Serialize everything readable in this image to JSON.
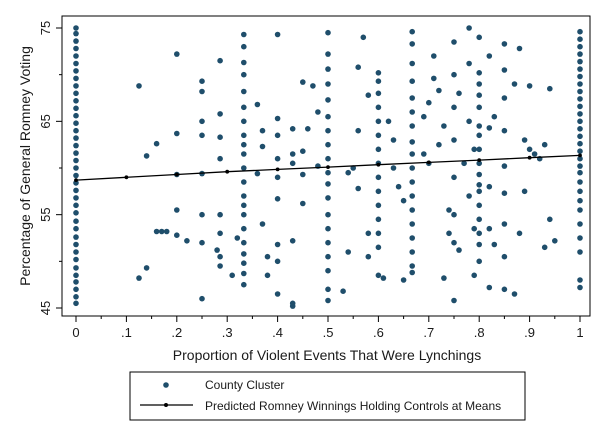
{
  "chart_data": {
    "type": "scatter",
    "xlabel": "Proportion of Violent Events That Were Lynchings",
    "ylabel": "Percentage of General Romney Voting",
    "xlim": [
      0,
      1
    ],
    "ylim": [
      45,
      75
    ],
    "x_ticks": [
      0,
      0.1,
      0.2,
      0.3,
      0.4,
      0.5,
      0.6,
      0.7,
      0.8,
      0.9,
      1
    ],
    "x_tick_labels": [
      "0",
      ".1",
      ".2",
      ".3",
      ".4",
      ".5",
      ".6",
      ".7",
      ".8",
      ".9",
      "1"
    ],
    "y_ticks": [
      45,
      55,
      65,
      75
    ],
    "y_tick_labels": [
      "45",
      "55",
      "65",
      "75"
    ],
    "grid": false,
    "legend_position": "bottom-center",
    "colors": {
      "points": "#1f4e6b",
      "line": "#000000",
      "frame": "#000000"
    },
    "series": [
      {
        "name": "County Cluster",
        "kind": "scatter",
        "points": [
          [
            0,
            45.5
          ],
          [
            0,
            46.2
          ],
          [
            0,
            47.0
          ],
          [
            0,
            47.8
          ],
          [
            0,
            48.5
          ],
          [
            0,
            49.3
          ],
          [
            0,
            50.2
          ],
          [
            0,
            51.0
          ],
          [
            0,
            51.8
          ],
          [
            0,
            52.6
          ],
          [
            0,
            53.5
          ],
          [
            0,
            54.3
          ],
          [
            0,
            55.2
          ],
          [
            0,
            56.0
          ],
          [
            0,
            56.8
          ],
          [
            0,
            57.6
          ],
          [
            0,
            58.4
          ],
          [
            0,
            59.2
          ],
          [
            0,
            60.0
          ],
          [
            0,
            60.8
          ],
          [
            0,
            61.6
          ],
          [
            0,
            62.4
          ],
          [
            0,
            63.2
          ],
          [
            0,
            64.0
          ],
          [
            0,
            64.8
          ],
          [
            0,
            65.6
          ],
          [
            0,
            66.4
          ],
          [
            0,
            67.2
          ],
          [
            0,
            68.0
          ],
          [
            0,
            68.8
          ],
          [
            0,
            69.6
          ],
          [
            0,
            70.4
          ],
          [
            0,
            71.2
          ],
          [
            0,
            72.0
          ],
          [
            0,
            72.8
          ],
          [
            0,
            73.6
          ],
          [
            0,
            74.4
          ],
          [
            0,
            75.0
          ],
          [
            1,
            47.2
          ],
          [
            1,
            48.0
          ],
          [
            1,
            51.0
          ],
          [
            1,
            52.5
          ],
          [
            1,
            54.0
          ],
          [
            1,
            55.5
          ],
          [
            1,
            56.5
          ],
          [
            1,
            57.5
          ],
          [
            1,
            58.5
          ],
          [
            1,
            59.5
          ],
          [
            1,
            60.2
          ],
          [
            1,
            61.0
          ],
          [
            1,
            61.8
          ],
          [
            1,
            62.6
          ],
          [
            1,
            63.4
          ],
          [
            1,
            64.2
          ],
          [
            1,
            65.0
          ],
          [
            1,
            65.8
          ],
          [
            1,
            66.6
          ],
          [
            1,
            67.4
          ],
          [
            1,
            68.2
          ],
          [
            1,
            69.0
          ],
          [
            1,
            69.8
          ],
          [
            1,
            70.6
          ],
          [
            1,
            71.4
          ],
          [
            1,
            72.2
          ],
          [
            1,
            73.0
          ],
          [
            1,
            73.8
          ],
          [
            1,
            74.6
          ],
          [
            0.125,
            68.8
          ],
          [
            0.125,
            48.2
          ],
          [
            0.14,
            61.3
          ],
          [
            0.14,
            49.3
          ],
          [
            0.16,
            62.6
          ],
          [
            0.16,
            53.2
          ],
          [
            0.17,
            53.2
          ],
          [
            0.18,
            53.2
          ],
          [
            0.2,
            72.2
          ],
          [
            0.2,
            63.7
          ],
          [
            0.2,
            59.3
          ],
          [
            0.2,
            55.5
          ],
          [
            0.2,
            52.8
          ],
          [
            0.22,
            52.2
          ],
          [
            0.25,
            69.3
          ],
          [
            0.25,
            68.2
          ],
          [
            0.25,
            65.0
          ],
          [
            0.25,
            63.5
          ],
          [
            0.25,
            59.4
          ],
          [
            0.25,
            55.0
          ],
          [
            0.25,
            52.0
          ],
          [
            0.25,
            46.0
          ],
          [
            0.28,
            51.2
          ],
          [
            0.286,
            71.5
          ],
          [
            0.286,
            65.8
          ],
          [
            0.286,
            63.3
          ],
          [
            0.286,
            61.0
          ],
          [
            0.286,
            55.0
          ],
          [
            0.286,
            53.0
          ],
          [
            0.286,
            50.5
          ],
          [
            0.286,
            49.5
          ],
          [
            0.31,
            48.5
          ],
          [
            0.32,
            52.5
          ],
          [
            0.333,
            74.3
          ],
          [
            0.333,
            73.0
          ],
          [
            0.333,
            71.3
          ],
          [
            0.333,
            70.0
          ],
          [
            0.333,
            68.2
          ],
          [
            0.333,
            66.5
          ],
          [
            0.333,
            65.0
          ],
          [
            0.333,
            63.5
          ],
          [
            0.333,
            62.5
          ],
          [
            0.333,
            61.5
          ],
          [
            0.333,
            60.0
          ],
          [
            0.333,
            58.5
          ],
          [
            0.333,
            57.0
          ],
          [
            0.333,
            56.0
          ],
          [
            0.333,
            55.0
          ],
          [
            0.333,
            53.5
          ],
          [
            0.333,
            52.0
          ],
          [
            0.333,
            50.8
          ],
          [
            0.333,
            49.8
          ],
          [
            0.333,
            48.7
          ],
          [
            0.333,
            47.5
          ],
          [
            0.36,
            66.8
          ],
          [
            0.37,
            64.0
          ],
          [
            0.37,
            62.3
          ],
          [
            0.36,
            59.4
          ],
          [
            0.37,
            54.0
          ],
          [
            0.38,
            50.5
          ],
          [
            0.38,
            48.5
          ],
          [
            0.4,
            74.3
          ],
          [
            0.4,
            65.3
          ],
          [
            0.4,
            63.5
          ],
          [
            0.4,
            61.0
          ],
          [
            0.4,
            59.0
          ],
          [
            0.4,
            56.7
          ],
          [
            0.4,
            51.8
          ],
          [
            0.4,
            50.0
          ],
          [
            0.4,
            46.5
          ],
          [
            0.43,
            64.2
          ],
          [
            0.43,
            61.5
          ],
          [
            0.43,
            60.5
          ],
          [
            0.43,
            52.2
          ],
          [
            0.43,
            45.5
          ],
          [
            0.43,
            45.2
          ],
          [
            0.45,
            69.2
          ],
          [
            0.45,
            61.8
          ],
          [
            0.45,
            59.3
          ],
          [
            0.45,
            56.2
          ],
          [
            0.46,
            64.2
          ],
          [
            0.47,
            68.8
          ],
          [
            0.48,
            66.0
          ],
          [
            0.48,
            60.2
          ],
          [
            0.5,
            74.5
          ],
          [
            0.5,
            72.2
          ],
          [
            0.5,
            70.6
          ],
          [
            0.5,
            69.0
          ],
          [
            0.5,
            67.3
          ],
          [
            0.5,
            65.5
          ],
          [
            0.5,
            64.0
          ],
          [
            0.5,
            62.5
          ],
          [
            0.5,
            61.0
          ],
          [
            0.5,
            59.5
          ],
          [
            0.5,
            58.3
          ],
          [
            0.5,
            56.8
          ],
          [
            0.5,
            55.0
          ],
          [
            0.5,
            53.5
          ],
          [
            0.5,
            52.0
          ],
          [
            0.5,
            50.5
          ],
          [
            0.5,
            49.0
          ],
          [
            0.5,
            47.0
          ],
          [
            0.5,
            45.8
          ],
          [
            0.53,
            46.8
          ],
          [
            0.54,
            59.5
          ],
          [
            0.54,
            51.0
          ],
          [
            0.55,
            60.0
          ],
          [
            0.56,
            70.8
          ],
          [
            0.56,
            64.0
          ],
          [
            0.56,
            57.8
          ],
          [
            0.57,
            74.0
          ],
          [
            0.58,
            67.8
          ],
          [
            0.58,
            53.0
          ],
          [
            0.58,
            50.5
          ],
          [
            0.6,
            70.2
          ],
          [
            0.6,
            69.3
          ],
          [
            0.6,
            68.0
          ],
          [
            0.6,
            66.5
          ],
          [
            0.6,
            65.0
          ],
          [
            0.6,
            63.5
          ],
          [
            0.6,
            62.0
          ],
          [
            0.6,
            60.5
          ],
          [
            0.6,
            59.0
          ],
          [
            0.6,
            57.5
          ],
          [
            0.6,
            56.0
          ],
          [
            0.6,
            54.5
          ],
          [
            0.6,
            53.0
          ],
          [
            0.6,
            51.5
          ],
          [
            0.6,
            48.5
          ],
          [
            0.61,
            48.2
          ],
          [
            0.62,
            65.0
          ],
          [
            0.63,
            63.0
          ],
          [
            0.63,
            60.0
          ],
          [
            0.64,
            58.0
          ],
          [
            0.65,
            56.5
          ],
          [
            0.65,
            48.0
          ],
          [
            0.667,
            74.6
          ],
          [
            0.667,
            73.3
          ],
          [
            0.667,
            71.2
          ],
          [
            0.667,
            69.3
          ],
          [
            0.667,
            67.5
          ],
          [
            0.667,
            66.0
          ],
          [
            0.667,
            64.5
          ],
          [
            0.667,
            62.8
          ],
          [
            0.667,
            61.5
          ],
          [
            0.667,
            60.0
          ],
          [
            0.667,
            58.5
          ],
          [
            0.667,
            57.0
          ],
          [
            0.667,
            55.5
          ],
          [
            0.667,
            54.0
          ],
          [
            0.667,
            52.5
          ],
          [
            0.667,
            51.0
          ],
          [
            0.667,
            49.5
          ],
          [
            0.667,
            48.8
          ],
          [
            0.69,
            65.5
          ],
          [
            0.69,
            61.5
          ],
          [
            0.7,
            67.0
          ],
          [
            0.7,
            60.5
          ],
          [
            0.71,
            72.0
          ],
          [
            0.71,
            69.6
          ],
          [
            0.72,
            68.3
          ],
          [
            0.72,
            62.5
          ],
          [
            0.73,
            64.5
          ],
          [
            0.73,
            48.2
          ],
          [
            0.74,
            55.5
          ],
          [
            0.74,
            53.0
          ],
          [
            0.75,
            73.5
          ],
          [
            0.75,
            70.0
          ],
          [
            0.75,
            66.5
          ],
          [
            0.75,
            63.0
          ],
          [
            0.75,
            59.0
          ],
          [
            0.75,
            55.0
          ],
          [
            0.75,
            52.0
          ],
          [
            0.75,
            45.8
          ],
          [
            0.76,
            68.0
          ],
          [
            0.76,
            51.2
          ],
          [
            0.77,
            60.5
          ],
          [
            0.78,
            75.0
          ],
          [
            0.78,
            71.2
          ],
          [
            0.78,
            65.0
          ],
          [
            0.78,
            57.0
          ],
          [
            0.79,
            62.0
          ],
          [
            0.79,
            53.5
          ],
          [
            0.79,
            48.5
          ],
          [
            0.8,
            74.0
          ],
          [
            0.8,
            70.2
          ],
          [
            0.8,
            69.0
          ],
          [
            0.8,
            67.8
          ],
          [
            0.8,
            66.5
          ],
          [
            0.8,
            64.5
          ],
          [
            0.8,
            63.5
          ],
          [
            0.8,
            62.0
          ],
          [
            0.8,
            60.5
          ],
          [
            0.8,
            59.3
          ],
          [
            0.8,
            58.2
          ],
          [
            0.8,
            57.5
          ],
          [
            0.8,
            56.0
          ],
          [
            0.8,
            54.5
          ],
          [
            0.8,
            53.0
          ],
          [
            0.8,
            51.8
          ],
          [
            0.8,
            50.0
          ],
          [
            0.82,
            72.0
          ],
          [
            0.82,
            64.3
          ],
          [
            0.82,
            58.0
          ],
          [
            0.82,
            53.5
          ],
          [
            0.82,
            47.2
          ],
          [
            0.83,
            65.5
          ],
          [
            0.83,
            51.8
          ],
          [
            0.85,
            73.3
          ],
          [
            0.85,
            70.5
          ],
          [
            0.85,
            67.5
          ],
          [
            0.85,
            64.0
          ],
          [
            0.85,
            60.2
          ],
          [
            0.85,
            57.3
          ],
          [
            0.85,
            54.0
          ],
          [
            0.85,
            50.5
          ],
          [
            0.85,
            47.0
          ],
          [
            0.87,
            69.0
          ],
          [
            0.87,
            46.5
          ],
          [
            0.88,
            72.8
          ],
          [
            0.88,
            53.0
          ],
          [
            0.89,
            63.0
          ],
          [
            0.89,
            57.5
          ],
          [
            0.9,
            68.8
          ],
          [
            0.9,
            62.0
          ],
          [
            0.91,
            61.5
          ],
          [
            0.92,
            61.0
          ],
          [
            0.93,
            62.5
          ],
          [
            0.93,
            51.5
          ],
          [
            0.94,
            68.5
          ],
          [
            0.94,
            54.5
          ],
          [
            0.95,
            52.2
          ]
        ]
      },
      {
        "name": "Predicted Romney Winnings Holding Controls at Means",
        "kind": "line",
        "points": [
          [
            0,
            58.7
          ],
          [
            0.1,
            59.0
          ],
          [
            0.2,
            59.3
          ],
          [
            0.3,
            59.6
          ],
          [
            0.4,
            59.85
          ],
          [
            0.5,
            60.1
          ],
          [
            0.6,
            60.35
          ],
          [
            0.7,
            60.6
          ],
          [
            0.8,
            60.85
          ],
          [
            0.9,
            61.1
          ],
          [
            1,
            61.35
          ]
        ]
      }
    ]
  }
}
